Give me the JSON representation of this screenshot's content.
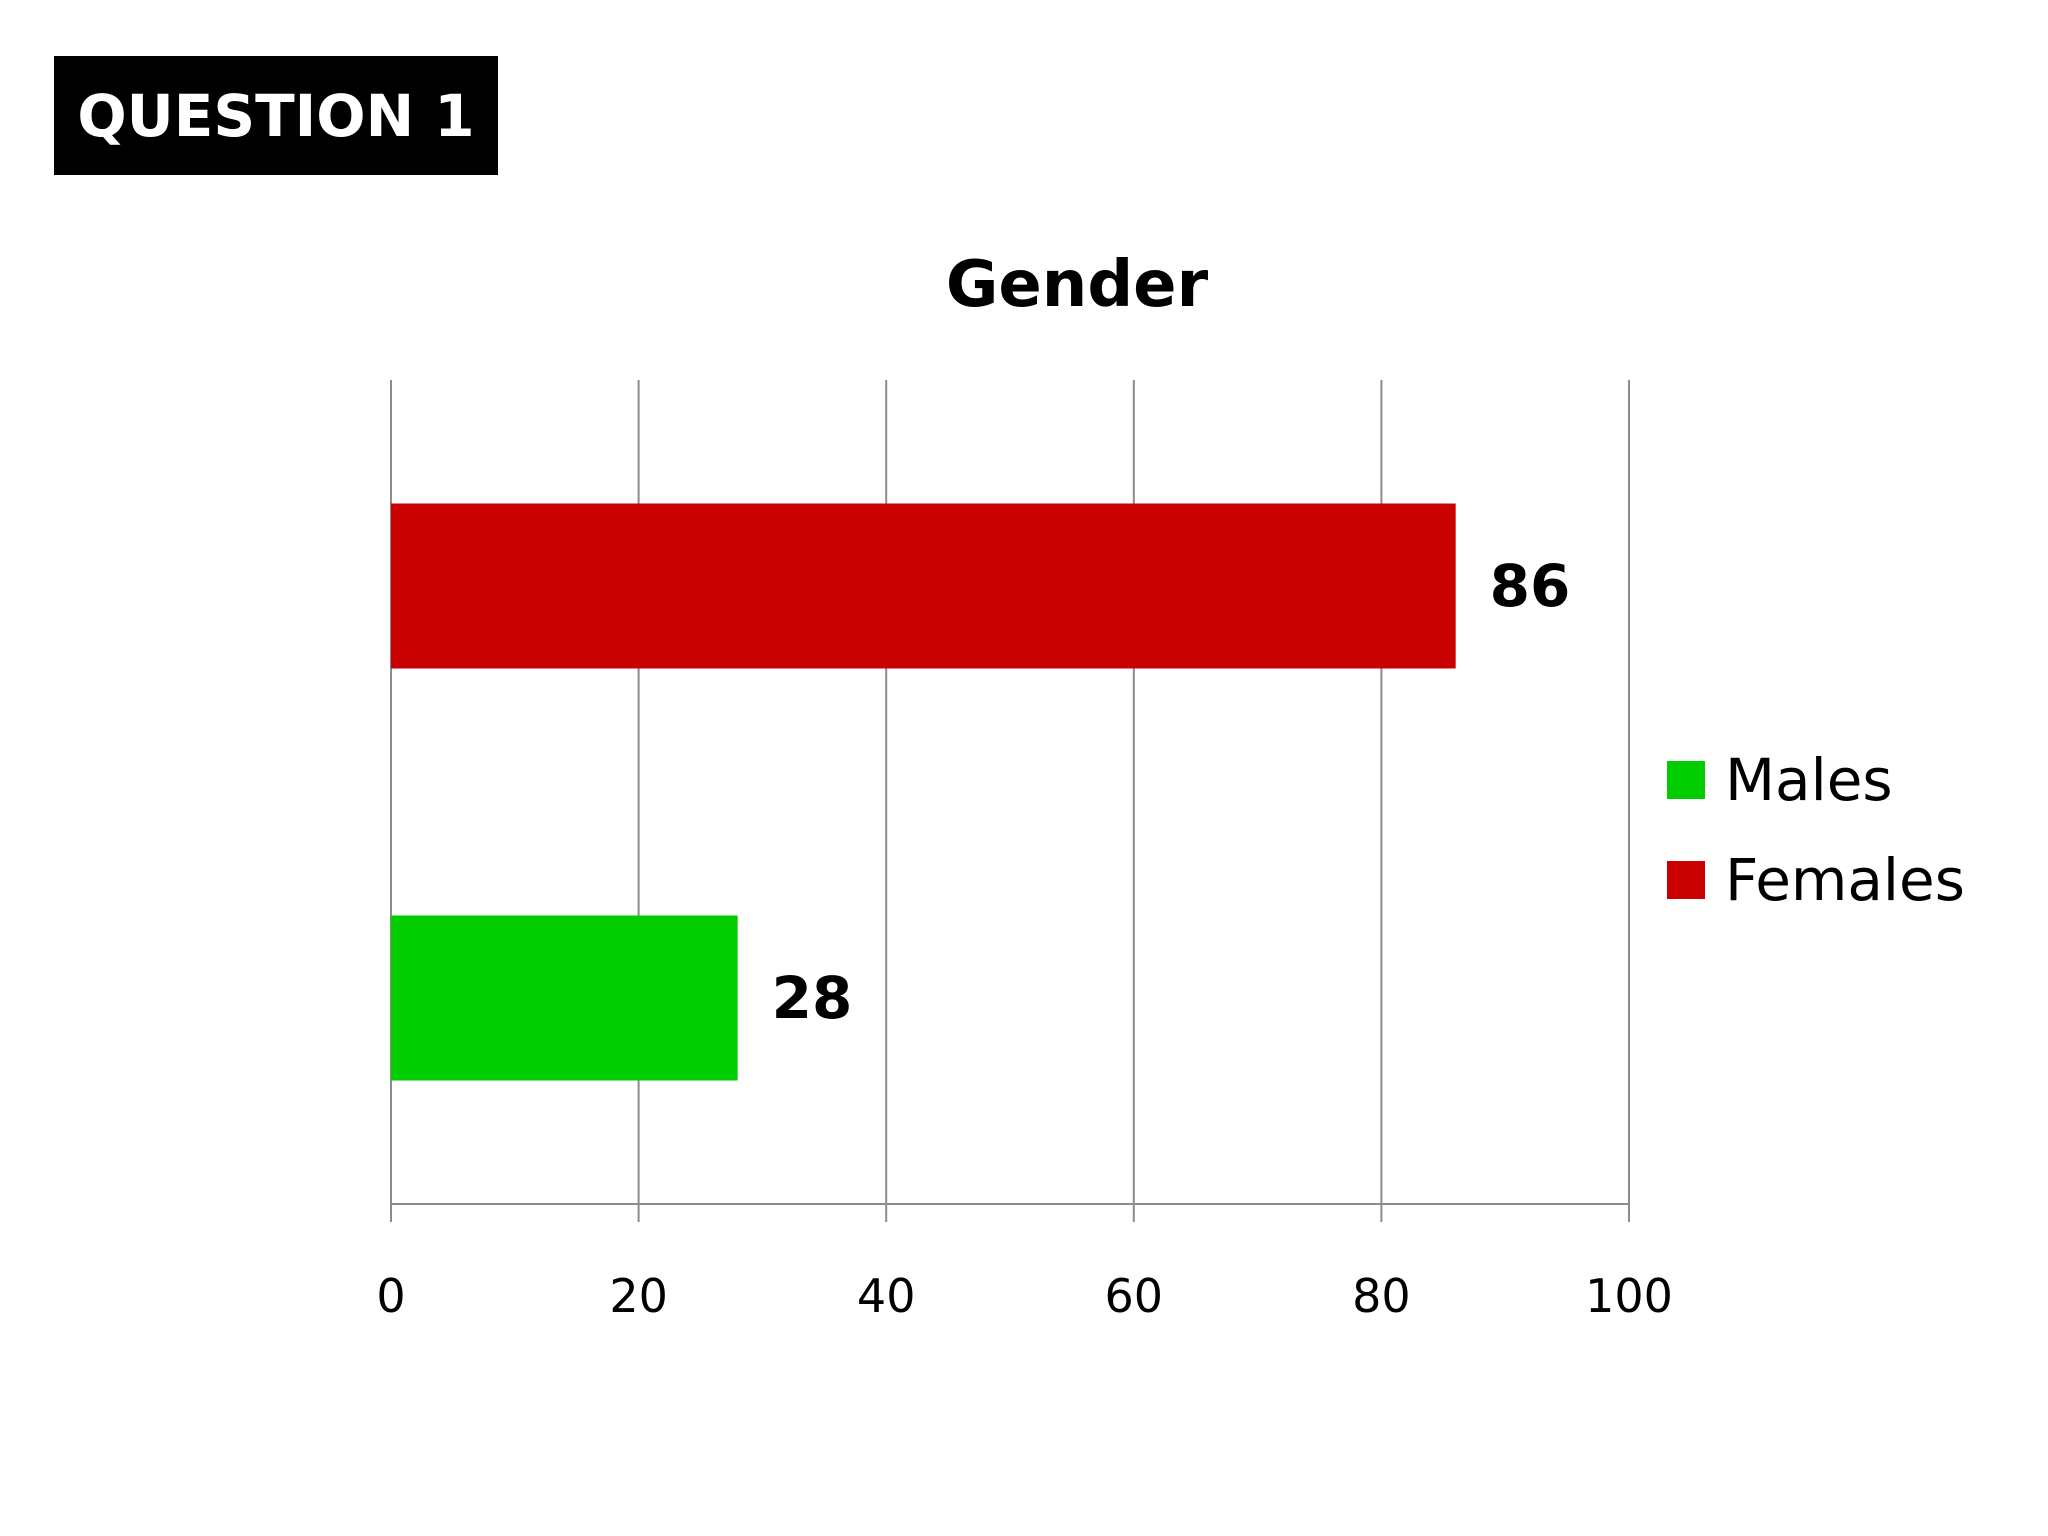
{
  "badge": {
    "label": "QUESTION 1"
  },
  "colors": {
    "badge_bg": "#000000",
    "badge_text": "#ffffff",
    "grid": "#8c8c8c",
    "text": "#000000"
  },
  "chart_data": {
    "type": "bar",
    "orientation": "horizontal",
    "title": "Gender",
    "xlabel": "",
    "ylabel": "",
    "xlim": [
      0,
      100
    ],
    "xticks": [
      0,
      20,
      40,
      60,
      80,
      100
    ],
    "grid": true,
    "legend_position": "right",
    "series": [
      {
        "name": "Males",
        "value": 28,
        "color": "#00cc00"
      },
      {
        "name": "Females",
        "value": 86,
        "color": "#c80000"
      }
    ]
  }
}
